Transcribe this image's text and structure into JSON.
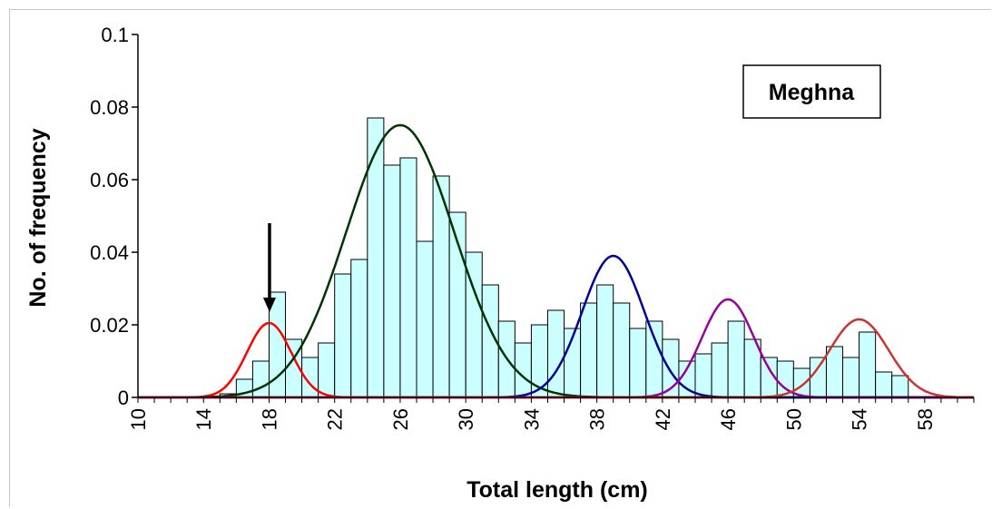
{
  "chart_data": {
    "type": "bar",
    "title": "",
    "annotation_box": "Meghna",
    "xlabel": "Total length (cm)",
    "ylabel": "No. of frequency",
    "xlim": [
      10,
      61
    ],
    "ylim": [
      0,
      0.1
    ],
    "x_tick_labels": [
      "10",
      "14",
      "18",
      "22",
      "26",
      "30",
      "34",
      "38",
      "42",
      "46",
      "50",
      "54",
      "58"
    ],
    "y_tick_labels": [
      "0",
      "0.02",
      "0.04",
      "0.06",
      "0.08",
      "0.1"
    ],
    "y_tick_values": [
      0,
      0.02,
      0.04,
      0.06,
      0.08,
      0.1
    ],
    "bar_width": 1,
    "bar_fill": "#ccffff",
    "bar_stroke": "#000000",
    "bars": {
      "x": [
        15,
        16,
        17,
        18,
        19,
        20,
        21,
        22,
        23,
        24,
        25,
        26,
        27,
        28,
        29,
        30,
        31,
        32,
        33,
        34,
        35,
        36,
        37,
        38,
        39,
        40,
        41,
        42,
        43,
        44,
        45,
        46,
        47,
        48,
        49,
        50,
        51,
        52,
        53,
        54,
        55,
        56
      ],
      "values": [
        0.001,
        0.005,
        0.01,
        0.029,
        0.016,
        0.011,
        0.015,
        0.034,
        0.038,
        0.077,
        0.064,
        0.066,
        0.043,
        0.061,
        0.051,
        0.04,
        0.031,
        0.021,
        0.015,
        0.02,
        0.024,
        0.019,
        0.026,
        0.031,
        0.026,
        0.019,
        0.021,
        0.016,
        0.01,
        0.012,
        0.015,
        0.021,
        0.016,
        0.011,
        0.01,
        0.008,
        0.011,
        0.014,
        0.011,
        0.018,
        0.007,
        0.006
      ]
    },
    "curves": [
      {
        "color": "#ff0000",
        "mean": 18,
        "sd": 1.35,
        "peak": 0.0205
      },
      {
        "color": "#003300",
        "mean": 26,
        "sd": 3.3,
        "peak": 0.075
      },
      {
        "color": "#000099",
        "mean": 39,
        "sd": 1.9,
        "peak": 0.039
      },
      {
        "color": "#990099",
        "mean": 46,
        "sd": 1.6,
        "peak": 0.027
      },
      {
        "color": "#cc3333",
        "mean": 54,
        "sd": 1.8,
        "peak": 0.0215
      }
    ],
    "arrow": {
      "x": 18,
      "y_from": 0.048,
      "y_to": 0.024
    },
    "grid": false,
    "legend": "top-right"
  }
}
